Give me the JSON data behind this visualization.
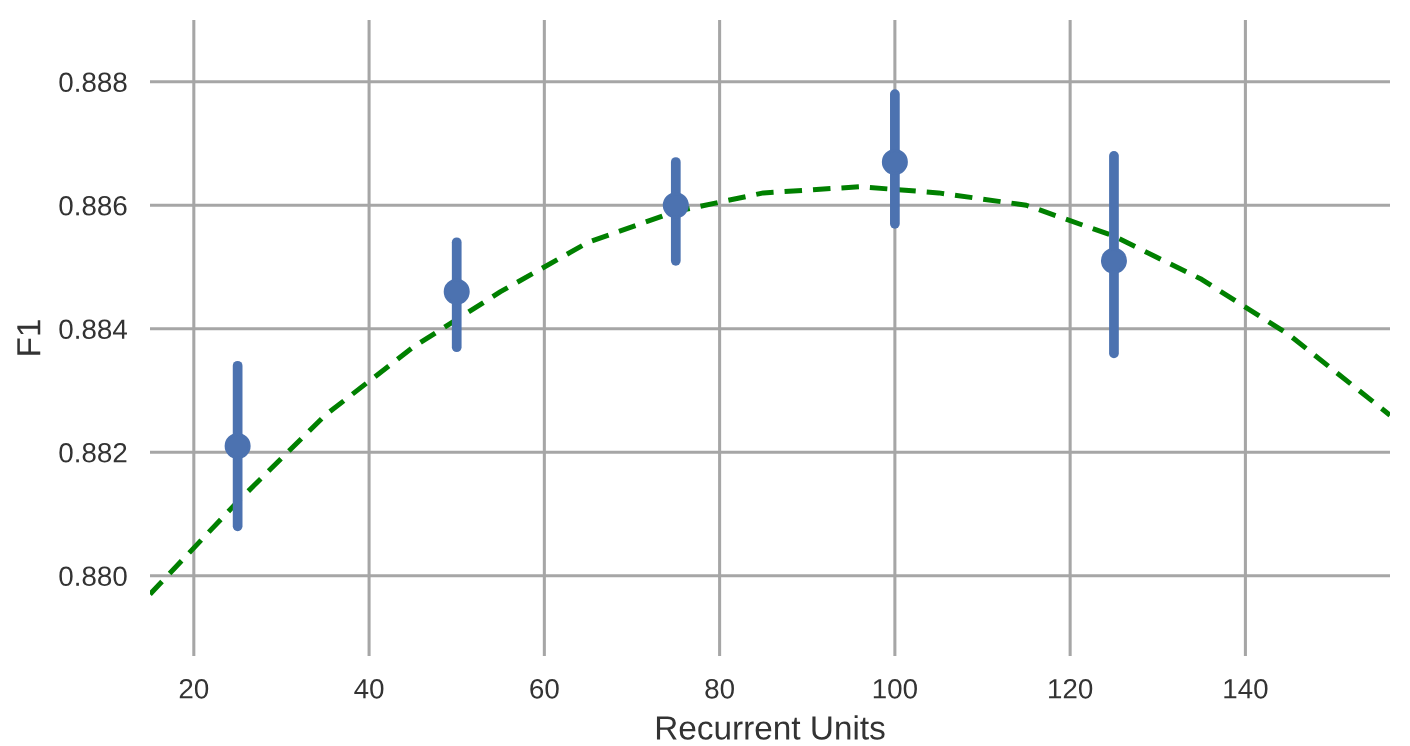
{
  "chart_data": {
    "type": "scatter",
    "xlabel": "Recurrent Units",
    "ylabel": "F1",
    "xlim": [
      15,
      156.5
    ],
    "ylim": [
      0.8787,
      0.889
    ],
    "xticks": [
      20,
      40,
      60,
      80,
      100,
      120,
      140
    ],
    "yticks": [
      {
        "value": 0.88,
        "label": "0.880"
      },
      0.882,
      0.884,
      0.886,
      0.888
    ],
    "grid": true,
    "series": [
      {
        "color": "#4c72b0",
        "marker": "circle",
        "x": [
          25,
          50,
          75,
          100,
          125
        ],
        "values": [
          0.8821,
          0.8846,
          0.886,
          0.8867,
          0.8851
        ],
        "errors": [
          [
            0.8808,
            0.8834
          ],
          [
            0.8837,
            0.8854
          ],
          [
            0.8851,
            0.8867
          ],
          [
            0.8857,
            0.8878
          ],
          [
            0.8836,
            0.8868
          ]
        ]
      },
      {
        "type": "line",
        "color": "#008000",
        "line_style": "dashed",
        "x": [
          15,
          25,
          35,
          45,
          55,
          65,
          75,
          85,
          96,
          105,
          115,
          125,
          135,
          145,
          156.5
        ],
        "values": [
          0.8797,
          0.8812,
          0.8826,
          0.8837,
          0.8846,
          0.8854,
          0.8859,
          0.8862,
          0.8863,
          0.8862,
          0.886,
          0.8855,
          0.8848,
          0.8839,
          0.8826
        ]
      }
    ]
  }
}
